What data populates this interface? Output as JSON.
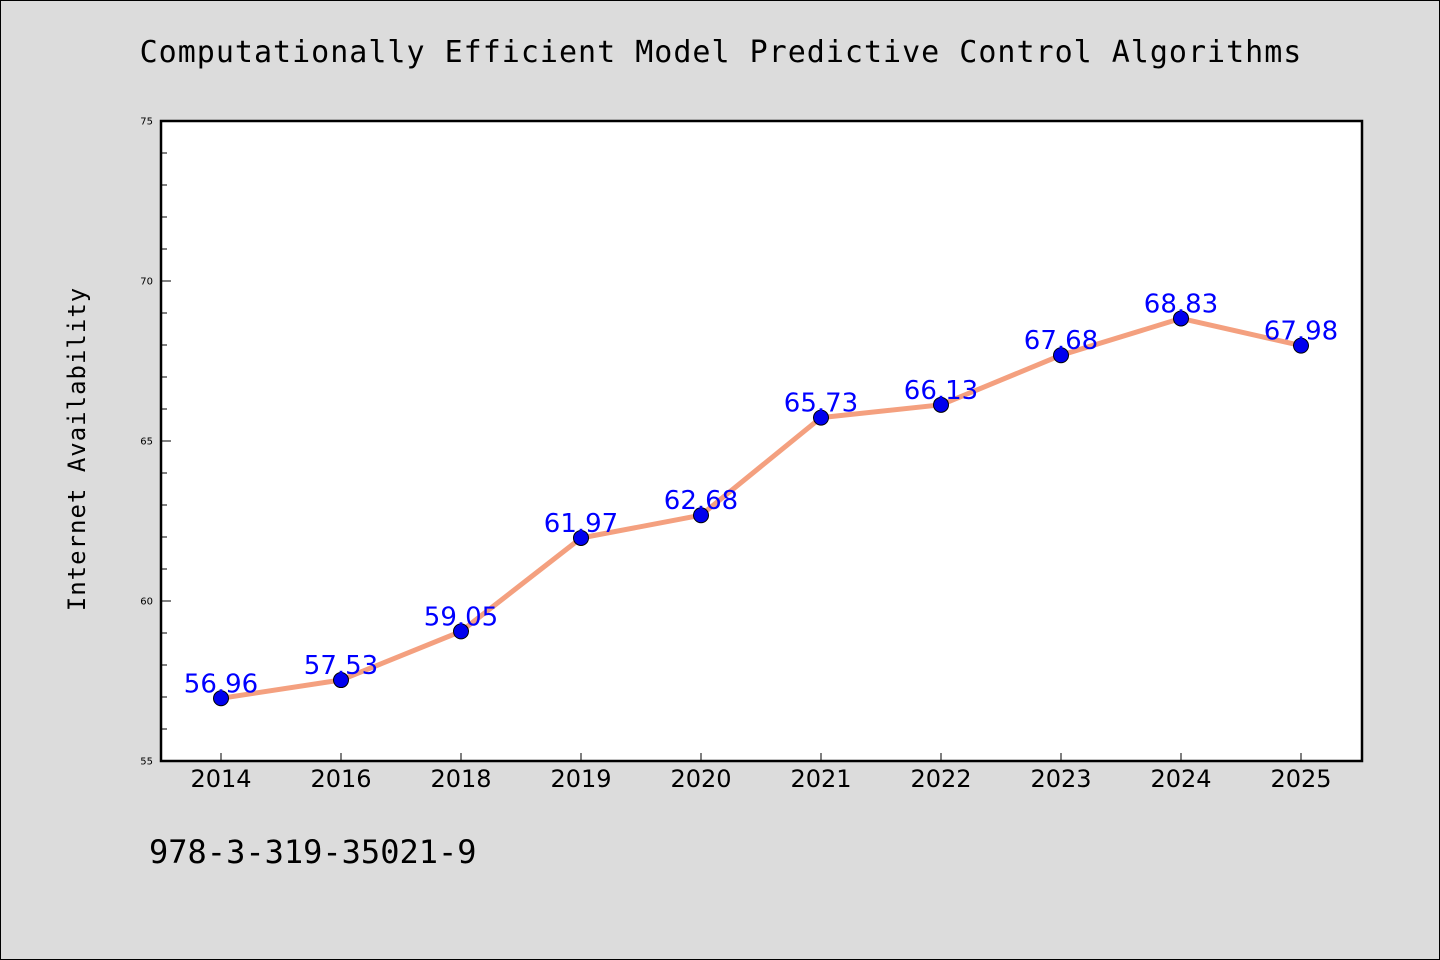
{
  "chart_data": {
    "type": "line",
    "title": "Computationally Efficient Model Predictive Control Algorithms",
    "xlabel": "",
    "ylabel": "Internet Availability",
    "categories": [
      "2014",
      "2016",
      "2018",
      "2019",
      "2020",
      "2021",
      "2022",
      "2023",
      "2024",
      "2025"
    ],
    "series": [
      {
        "values": [
          56.96,
          57.53,
          59.05,
          61.97,
          62.68,
          65.73,
          66.13,
          67.68,
          68.83,
          67.98
        ],
        "labels": [
          "56.96",
          "57.53",
          "59.05",
          "61.97",
          "62.68",
          "65.73",
          "66.13",
          "67.68",
          "68.83",
          "67.98"
        ],
        "line_color": "#f4a07f",
        "marker_color": "#0000ee"
      }
    ],
    "ylim": [
      55,
      75
    ],
    "yticks": [
      "55",
      "60",
      "65",
      "70",
      "75"
    ],
    "grid": false,
    "legend": "none",
    "label_color": "#0000ff"
  },
  "footer": {
    "code": "978-3-319-35021-9"
  }
}
